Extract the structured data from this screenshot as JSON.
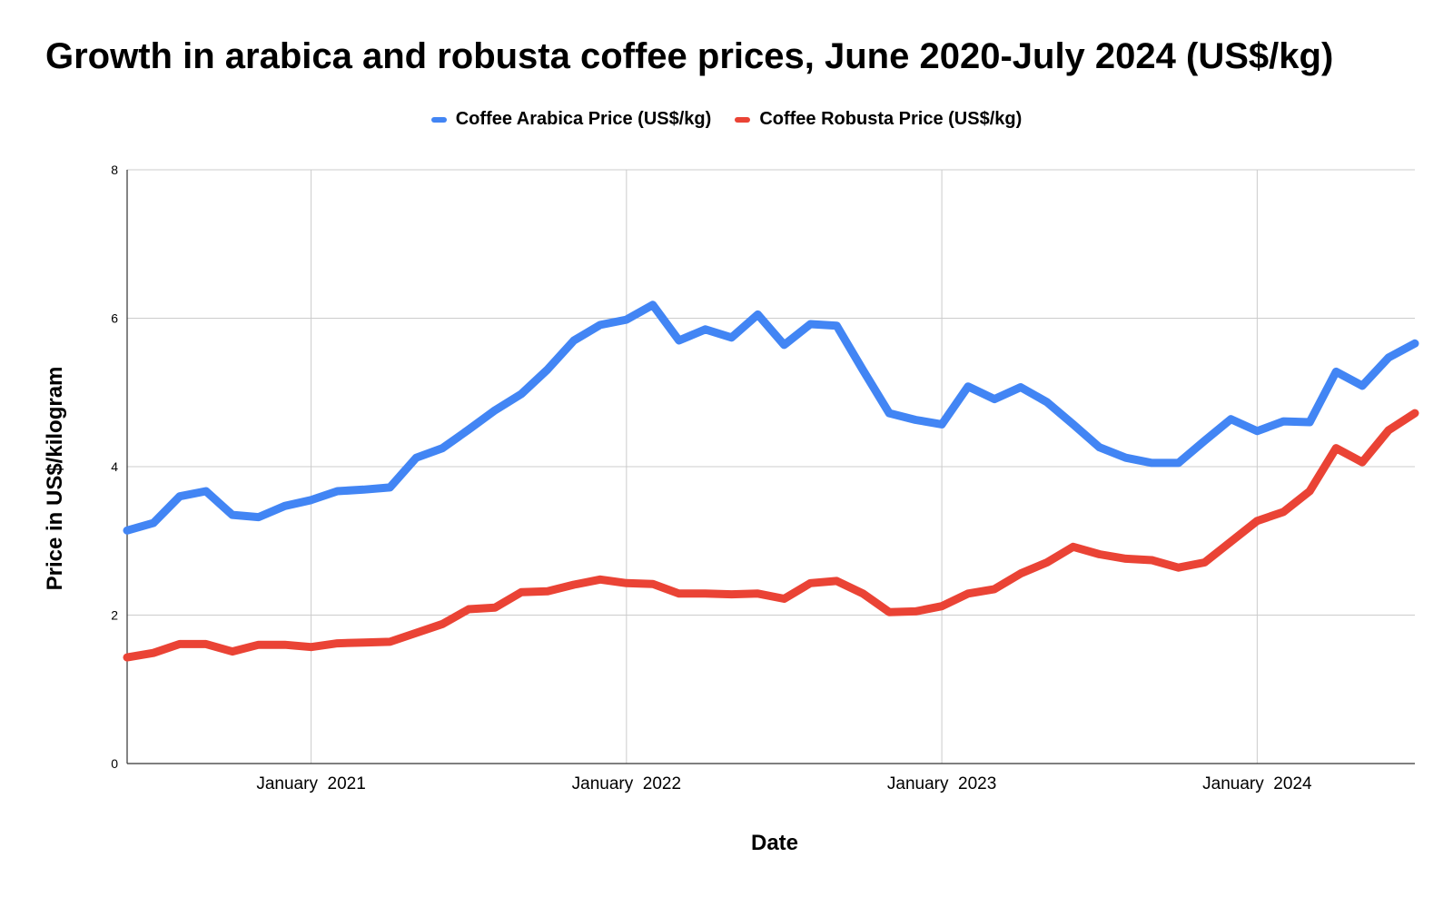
{
  "chart_data": {
    "type": "line",
    "title": "Growth in arabica and robusta coffee prices, June 2020-July 2024 (US$/kg)",
    "xlabel": "Date",
    "ylabel": "Price in US$/kilogram",
    "ylim": [
      0,
      8
    ],
    "y_ticks": [
      "0",
      "2",
      "4",
      "6",
      "8"
    ],
    "x_ticks": [
      "January  2021",
      "January  2022",
      "January  2023",
      "January  2024"
    ],
    "x_tick_months": [
      7,
      19,
      31,
      43
    ],
    "grid": true,
    "legend_position": "top",
    "x": [
      "2020-06",
      "2020-07",
      "2020-08",
      "2020-09",
      "2020-10",
      "2020-11",
      "2020-12",
      "2021-01",
      "2021-02",
      "2021-03",
      "2021-04",
      "2021-05",
      "2021-06",
      "2021-07",
      "2021-08",
      "2021-09",
      "2021-10",
      "2021-11",
      "2021-12",
      "2022-01",
      "2022-02",
      "2022-03",
      "2022-04",
      "2022-05",
      "2022-06",
      "2022-07",
      "2022-08",
      "2022-09",
      "2022-10",
      "2022-11",
      "2022-12",
      "2023-01",
      "2023-02",
      "2023-03",
      "2023-04",
      "2023-05",
      "2023-06",
      "2023-07",
      "2023-08",
      "2023-09",
      "2023-10",
      "2023-11",
      "2023-12",
      "2024-01",
      "2024-02",
      "2024-03",
      "2024-04",
      "2024-05",
      "2024-06",
      "2024-07"
    ],
    "series": [
      {
        "name": "Coffee Arabica Price (US$/kg)",
        "color": "#4285f4",
        "values": [
          3.14,
          3.24,
          3.6,
          3.67,
          3.35,
          3.32,
          3.47,
          3.55,
          3.67,
          3.69,
          3.72,
          4.12,
          4.25,
          4.5,
          4.76,
          4.98,
          5.31,
          5.7,
          5.91,
          5.98,
          6.18,
          5.7,
          5.85,
          5.74,
          6.05,
          5.64,
          5.92,
          5.9,
          5.3,
          4.72,
          4.63,
          4.57,
          5.08,
          4.91,
          5.07,
          4.87,
          4.57,
          4.26,
          4.12,
          4.05,
          4.05,
          4.35,
          4.64,
          4.48,
          4.61,
          4.6,
          5.28,
          5.09,
          5.47,
          5.66
        ]
      },
      {
        "name": "Coffee Robusta Price (US$/kg)",
        "color": "#ea4335",
        "values": [
          1.43,
          1.49,
          1.61,
          1.61,
          1.51,
          1.6,
          1.6,
          1.57,
          1.62,
          1.63,
          1.64,
          1.76,
          1.88,
          2.08,
          2.1,
          2.31,
          2.32,
          2.41,
          2.48,
          2.43,
          2.42,
          2.29,
          2.29,
          2.28,
          2.29,
          2.22,
          2.43,
          2.46,
          2.29,
          2.04,
          2.05,
          2.12,
          2.29,
          2.35,
          2.56,
          2.71,
          2.92,
          2.82,
          2.76,
          2.74,
          2.64,
          2.71,
          2.99,
          3.27,
          3.39,
          3.67,
          4.25,
          4.06,
          4.49,
          4.72
        ]
      }
    ]
  }
}
